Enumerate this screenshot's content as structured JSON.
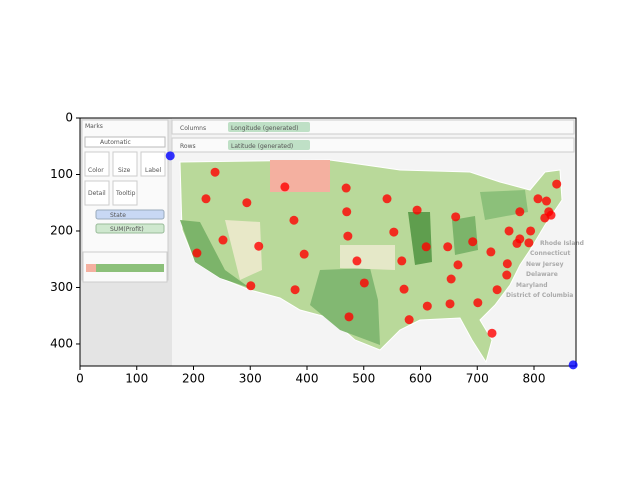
{
  "chart_data": {
    "type": "scatter",
    "image": {
      "labels": [
        "Marks",
        "Automatic",
        "Color",
        "Size",
        "Label",
        "Detail",
        "Tooltip",
        "State",
        "SUM(Profit)",
        "Columns",
        "Rows",
        "Longitude (generated)",
        "Latitude (generated)",
        "Rhode Island",
        "Connecticut",
        "New Jersey",
        "Delaware",
        "Maryland",
        "District of Columbia"
      ]
    },
    "series": [
      {
        "color": "#ff0000",
        "x": [
          238,
          222,
          294,
          361,
          377,
          252,
          206,
          315,
          395,
          301,
          379,
          469,
          470,
          472,
          488,
          501,
          474,
          541,
          553,
          567,
          571,
          594,
          610,
          580,
          612,
          648,
          662,
          666,
          654,
          652,
          692,
          701,
          724,
          735,
          726,
          753,
          752,
          756,
          770,
          775,
          775,
          791,
          794,
          807,
          819,
          822,
          826,
          830,
          840
        ],
        "values": [
          96,
          143,
          150,
          122,
          181,
          216,
          239,
          227,
          241,
          297,
          304,
          124,
          166,
          209,
          253,
          292,
          352,
          143,
          202,
          253,
          303,
          163,
          228,
          357,
          333,
          228,
          175,
          260,
          285,
          329,
          219,
          327,
          237,
          304,
          381,
          258,
          278,
          200,
          222,
          214,
          166,
          221,
          200,
          143,
          177,
          147,
          166,
          172,
          117
        ]
      },
      {
        "color": "#0000ff",
        "x": [
          159,
          869
        ],
        "values": [
          67,
          437
        ]
      }
    ],
    "xlim": [
      0,
      874
    ],
    "ylim": [
      439,
      0
    ],
    "xticks": [
      0,
      100,
      200,
      300,
      400,
      500,
      600,
      700,
      800
    ],
    "yticks": [
      0,
      100,
      200,
      300,
      400
    ]
  }
}
